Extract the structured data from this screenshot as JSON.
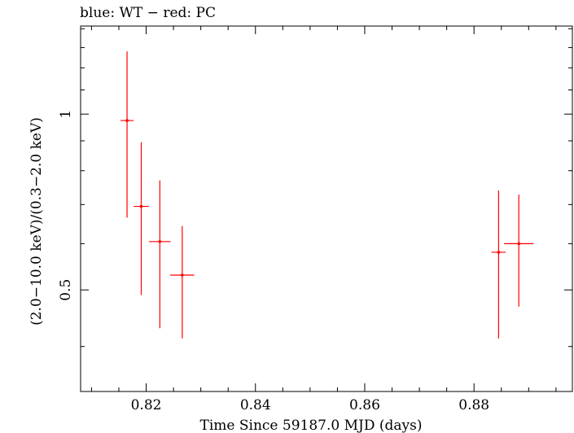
{
  "chart_data": {
    "type": "scatter",
    "title": "blue: WT − red: PC",
    "xlabel": "Time Since 59187.0 MJD (days)",
    "ylabel": "(2.0−10.0 keV)/(0.3−2.0 keV)",
    "xlim": [
      0.808,
      0.898
    ],
    "ylim": [
      0.335,
      1.415
    ],
    "y_scale": "log",
    "x_ticks": [
      "0.82",
      "0.84",
      "0.86",
      "0.88"
    ],
    "y_ticks": [
      "0.5",
      "1"
    ],
    "grid": false,
    "colors": {
      "PC": "#ff0000",
      "axis": "#000000"
    },
    "series": [
      {
        "name": "PC",
        "points": [
          {
            "x": 0.8165,
            "xerr": 0.0012,
            "y": 0.975,
            "ylo": 0.665,
            "yhi": 1.28
          },
          {
            "x": 0.8191,
            "xerr": 0.0014,
            "y": 0.695,
            "ylo": 0.49,
            "yhi": 0.895
          },
          {
            "x": 0.8225,
            "xerr": 0.002,
            "y": 0.605,
            "ylo": 0.43,
            "yhi": 0.77
          },
          {
            "x": 0.8266,
            "xerr": 0.0022,
            "y": 0.53,
            "ylo": 0.413,
            "yhi": 0.643
          },
          {
            "x": 0.8845,
            "xerr": 0.0013,
            "y": 0.58,
            "ylo": 0.413,
            "yhi": 0.74
          },
          {
            "x": 0.8882,
            "xerr": 0.0027,
            "y": 0.6,
            "ylo": 0.468,
            "yhi": 0.728
          }
        ]
      }
    ]
  }
}
